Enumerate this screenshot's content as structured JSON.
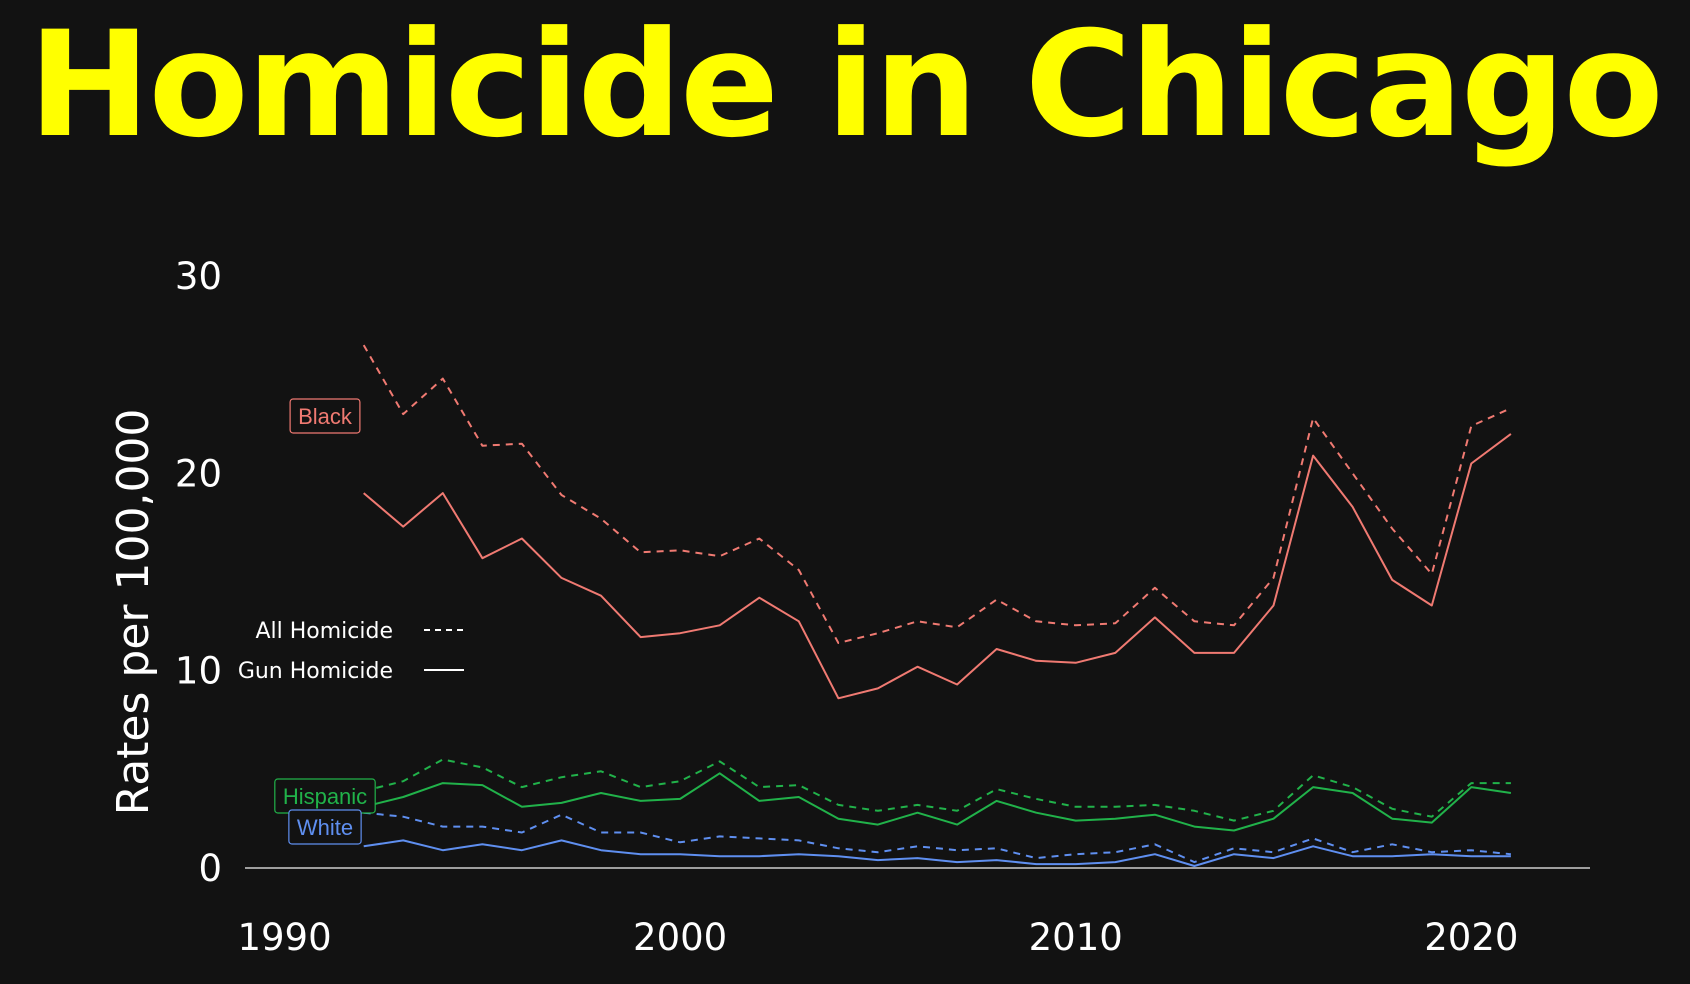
{
  "title": "Homicide in Chicago",
  "colors": {
    "background": "#121212",
    "title": "#ffff00",
    "text": "#ffffff",
    "axis": "#cccccc",
    "Black": "#f07a72",
    "Hispanic": "#21b24a",
    "White": "#5f8ff0"
  },
  "chart_data": {
    "type": "line",
    "ylabel": "Rates per 100,000",
    "xlim": [
      1989,
      2023
    ],
    "ylim": [
      0,
      30
    ],
    "xticks": [
      1990,
      2000,
      2010,
      2020
    ],
    "yticks": [
      0,
      10,
      20,
      30
    ],
    "x": [
      1992,
      1993,
      1994,
      1995,
      1996,
      1997,
      1998,
      1999,
      2000,
      2001,
      2002,
      2003,
      2004,
      2005,
      2006,
      2007,
      2008,
      2009,
      2010,
      2011,
      2012,
      2013,
      2014,
      2015,
      2016,
      2017,
      2018,
      2019,
      2020,
      2021
    ],
    "legend": [
      {
        "label": "All Homicide",
        "style": "dashed"
      },
      {
        "label": "Gun Homicide",
        "style": "solid"
      }
    ],
    "groups": [
      "Black",
      "Hispanic",
      "White"
    ],
    "series": [
      {
        "group": "Black",
        "measure": "All Homicide",
        "values": [
          26.5,
          23.0,
          24.8,
          21.4,
          21.5,
          18.9,
          17.7,
          16.0,
          16.1,
          15.8,
          16.7,
          15.1,
          11.4,
          11.9,
          12.5,
          12.2,
          13.6,
          12.5,
          12.3,
          12.4,
          14.2,
          12.5,
          12.3,
          14.7,
          22.8,
          20.0,
          17.2,
          14.9,
          22.4,
          23.3
        ]
      },
      {
        "group": "Black",
        "measure": "Gun Homicide",
        "values": [
          19.0,
          17.3,
          19.0,
          15.7,
          16.7,
          14.7,
          13.8,
          11.7,
          11.9,
          12.3,
          13.7,
          12.5,
          8.6,
          9.1,
          10.2,
          9.3,
          11.1,
          10.5,
          10.4,
          10.9,
          12.7,
          10.9,
          10.9,
          13.3,
          20.9,
          18.3,
          14.6,
          13.3,
          20.5,
          22.0
        ]
      },
      {
        "group": "Hispanic",
        "measure": "All Homicide",
        "values": [
          3.9,
          4.4,
          5.5,
          5.1,
          4.1,
          4.6,
          4.9,
          4.1,
          4.4,
          5.4,
          4.1,
          4.2,
          3.2,
          2.9,
          3.2,
          2.9,
          4.0,
          3.5,
          3.1,
          3.1,
          3.2,
          2.9,
          2.4,
          2.9,
          4.7,
          4.1,
          3.0,
          2.6,
          4.3,
          4.3
        ]
      },
      {
        "group": "Hispanic",
        "measure": "Gun Homicide",
        "values": [
          3.1,
          3.6,
          4.3,
          4.2,
          3.1,
          3.3,
          3.8,
          3.4,
          3.5,
          4.8,
          3.4,
          3.6,
          2.5,
          2.2,
          2.8,
          2.2,
          3.4,
          2.8,
          2.4,
          2.5,
          2.7,
          2.1,
          1.9,
          2.5,
          4.1,
          3.8,
          2.5,
          2.3,
          4.1,
          3.8
        ]
      },
      {
        "group": "White",
        "measure": "All Homicide",
        "values": [
          2.8,
          2.6,
          2.1,
          2.1,
          1.8,
          2.7,
          1.8,
          1.8,
          1.3,
          1.6,
          1.5,
          1.4,
          1.0,
          0.8,
          1.1,
          0.9,
          1.0,
          0.5,
          0.7,
          0.8,
          1.2,
          0.3,
          1.0,
          0.8,
          1.5,
          0.8,
          1.2,
          0.8,
          0.9,
          0.7
        ]
      },
      {
        "group": "White",
        "measure": "Gun Homicide",
        "values": [
          1.1,
          1.4,
          0.9,
          1.2,
          0.9,
          1.4,
          0.9,
          0.7,
          0.7,
          0.6,
          0.6,
          0.7,
          0.6,
          0.4,
          0.5,
          0.3,
          0.4,
          0.2,
          0.2,
          0.3,
          0.7,
          0.1,
          0.7,
          0.5,
          1.1,
          0.6,
          0.6,
          0.7,
          0.6,
          0.6
        ]
      }
    ]
  }
}
